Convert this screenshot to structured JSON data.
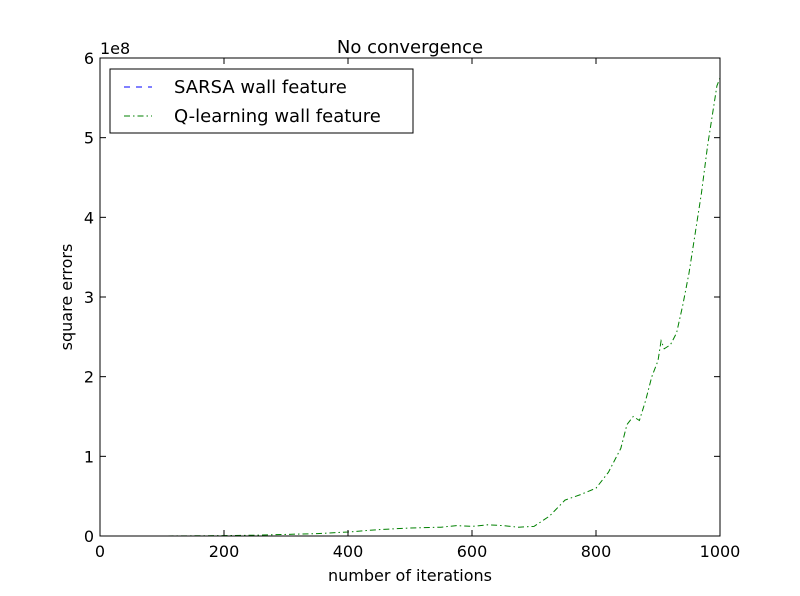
{
  "chart_data": {
    "type": "line",
    "title": "No convergence",
    "xlabel": "number of iterations",
    "ylabel": "square errors",
    "y_offset_label": "1e8",
    "xlim": [
      0,
      1000
    ],
    "ylim": [
      0,
      6
    ],
    "y_scale_factor": 100000000,
    "x_ticks": [
      0,
      200,
      400,
      600,
      800,
      1000
    ],
    "y_ticks": [
      0,
      1,
      2,
      3,
      4,
      5,
      6
    ],
    "grid": false,
    "legend_position": "top-left",
    "series": [
      {
        "name": "SARSA wall feature",
        "color": "#0000ff",
        "style": "dashed",
        "x": [
          0,
          100,
          200,
          300,
          400,
          500,
          600,
          700,
          800,
          900,
          1000
        ],
        "y": [
          0,
          0,
          0,
          0,
          0,
          0,
          0,
          0,
          0,
          0,
          0
        ]
      },
      {
        "name": "Q-learning wall feature",
        "color": "#008000",
        "style": "dashdot",
        "x": [
          0,
          100,
          200,
          250,
          300,
          350,
          400,
          450,
          500,
          550,
          575,
          600,
          625,
          650,
          675,
          700,
          725,
          750,
          775,
          800,
          820,
          840,
          850,
          860,
          870,
          880,
          890,
          900,
          905,
          910,
          920,
          930,
          940,
          950,
          960,
          970,
          980,
          990,
          995,
          1000
        ],
        "y": [
          0,
          0,
          0.005,
          0.01,
          0.02,
          0.03,
          0.05,
          0.08,
          0.1,
          0.11,
          0.13,
          0.12,
          0.14,
          0.13,
          0.11,
          0.12,
          0.25,
          0.45,
          0.52,
          0.6,
          0.8,
          1.1,
          1.4,
          1.5,
          1.45,
          1.7,
          2.0,
          2.2,
          2.45,
          2.35,
          2.4,
          2.55,
          2.9,
          3.3,
          3.8,
          4.3,
          4.9,
          5.4,
          5.65,
          5.75
        ]
      }
    ]
  }
}
